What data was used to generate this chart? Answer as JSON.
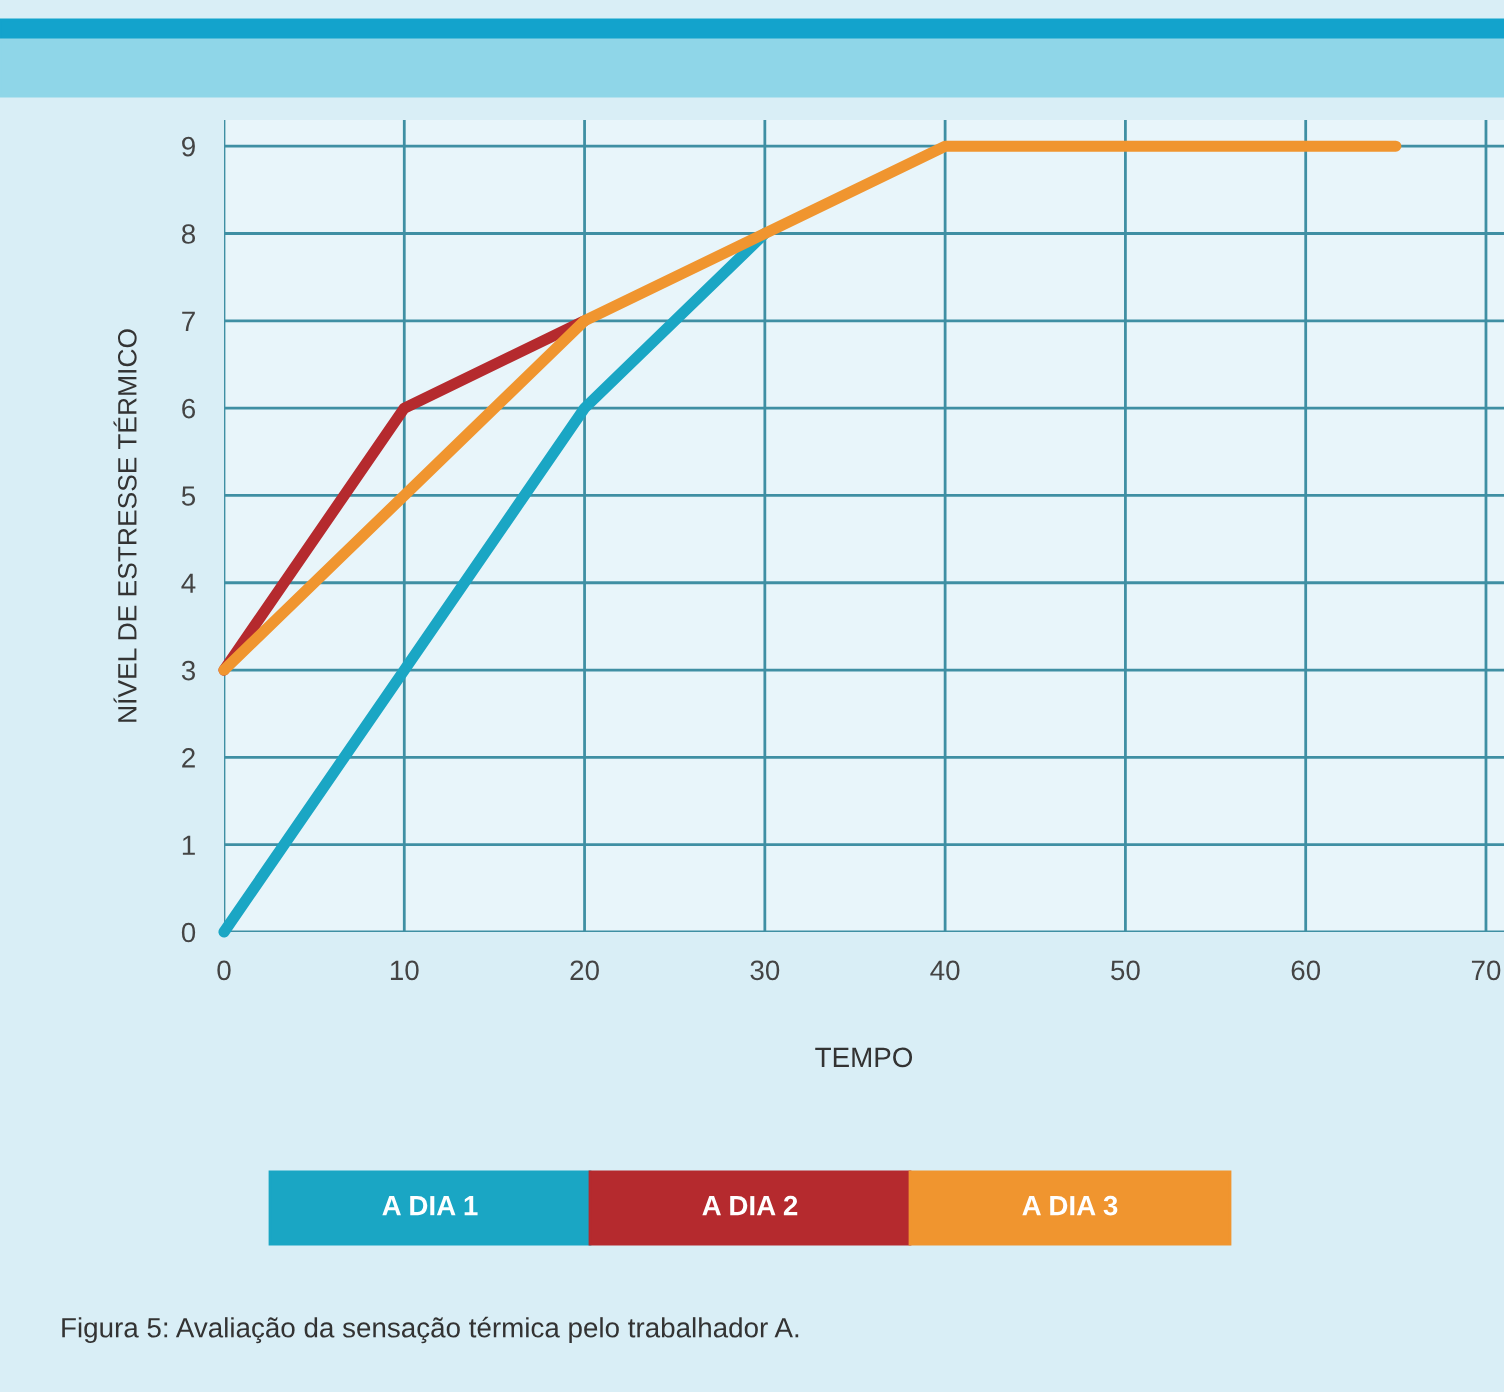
{
  "chart_data": {
    "type": "line",
    "xlabel": "TEMPO",
    "ylabel": "NÍVEL DE ESTRESSE TÉRMICO",
    "xlim": [
      0,
      71
    ],
    "xticks": [
      0,
      10,
      20,
      30,
      40,
      50,
      60,
      70
    ],
    "ylim": [
      0,
      9.3
    ],
    "yticks": [
      0,
      1,
      2,
      3,
      4,
      5,
      6,
      7,
      8,
      9
    ],
    "grid": true,
    "legend": "bottom",
    "series": [
      {
        "name": "A DIA 1",
        "color": "#1aa6c4",
        "x": [
          0,
          10,
          20,
          30
        ],
        "values": [
          0,
          3,
          6,
          8
        ]
      },
      {
        "name": "A DIA 2",
        "color": "#b52a2e",
        "x": [
          0,
          10,
          20
        ],
        "values": [
          3,
          6,
          7
        ]
      },
      {
        "name": "A DIA 3",
        "color": "#f0952f",
        "x": [
          0,
          10,
          20,
          30,
          40,
          65
        ],
        "values": [
          3,
          5,
          7,
          8,
          9,
          9
        ]
      }
    ],
    "annotations": [
      "Figura 5: Avaliação da sensação térmica pelo trabalhador A."
    ]
  }
}
